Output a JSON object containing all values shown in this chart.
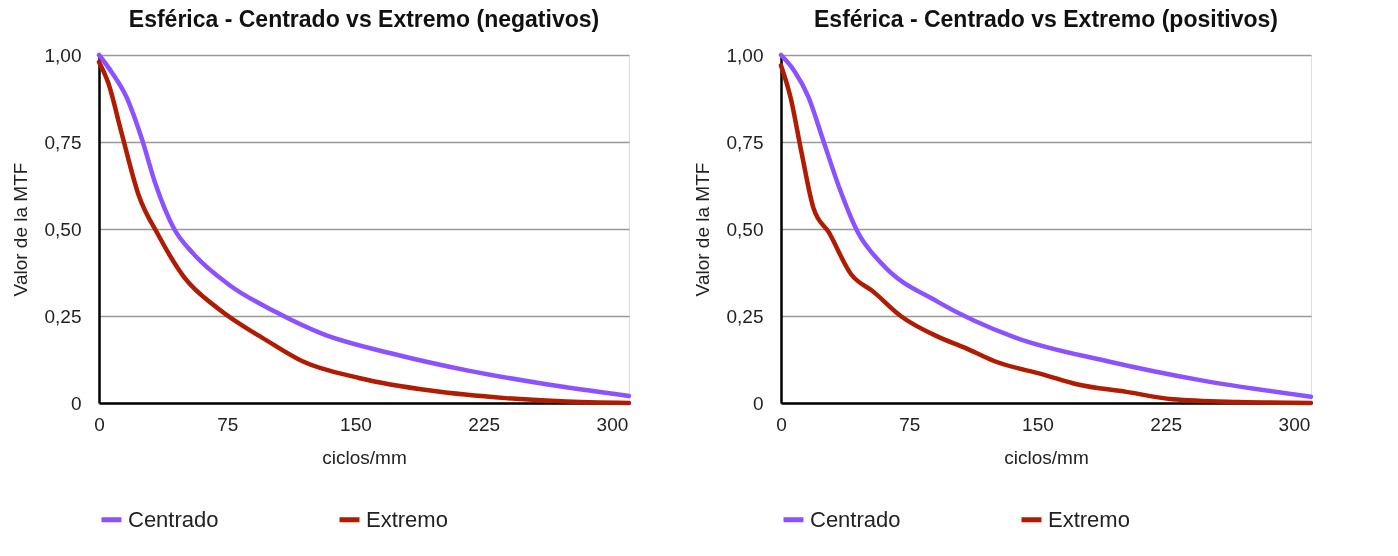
{
  "chart_data": [
    {
      "type": "line",
      "title": "Esférica - Centrado vs Extremo (negativos)",
      "xlabel": "ciclos/mm",
      "ylabel": "Valor de la MTF",
      "series": [
        {
          "name": "Centrado",
          "color": "#8c52ff",
          "x": [
            0,
            7.5,
            16,
            25,
            33,
            44,
            55,
            76,
            104,
            130,
            173,
            216,
            259,
            310
          ],
          "values": [
            1.0,
            0.95,
            0.88,
            0.76,
            0.63,
            0.5,
            0.43,
            0.34,
            0.26,
            0.2,
            0.14,
            0.093,
            0.056,
            0.02
          ]
        },
        {
          "name": "Extremo",
          "color": "#b01c02",
          "x": [
            0,
            5.4,
            13,
            23,
            35,
            50,
            70,
            98,
            119,
            152,
            195,
            238,
            270,
            310
          ],
          "values": [
            0.98,
            0.92,
            0.78,
            0.6,
            0.48,
            0.36,
            0.27,
            0.18,
            0.12,
            0.072,
            0.035,
            0.014,
            0.005,
            0
          ]
        }
      ],
      "xlim": [
        0,
        310
      ],
      "xticks": [
        0,
        75,
        150,
        225,
        300
      ],
      "ylim": [
        0,
        1
      ],
      "yticks": [
        0,
        {
          "value": 0.25,
          "label": "0,25"
        },
        {
          "value": 0.5,
          "label": "0,50"
        },
        {
          "value": 0.75,
          "label": "0,75"
        },
        {
          "value": 1,
          "label": "1,00"
        }
      ],
      "grid": "y",
      "legend": "bottom",
      "marker": "none",
      "line_style": "solid"
    },
    {
      "type": "line",
      "title": "Esférica - Centrado vs Extremo (positivos)",
      "xlabel": "ciclos/mm",
      "ylabel": "Valor de la MTF",
      "series": [
        {
          "name": "Centrado",
          "color": "#8c52ff",
          "x": [
            0,
            7.7,
            16,
            25,
            34,
            45,
            59,
            92,
            136,
            191,
            246,
            310
          ],
          "values": [
            1.0,
            0.955,
            0.88,
            0.75,
            0.62,
            0.49,
            0.4,
            0.29,
            0.19,
            0.12,
            0.065,
            0.018
          ]
        },
        {
          "name": "Extremo",
          "color": "#b01c02",
          "x": [
            0,
            5.5,
            12,
            19,
            28,
            41,
            54,
            70,
            92,
            107,
            125,
            154,
            173,
            202,
            229,
            268,
            310
          ],
          "values": [
            0.97,
            0.88,
            0.72,
            0.56,
            0.49,
            0.37,
            0.32,
            0.25,
            0.19,
            0.16,
            0.12,
            0.081,
            0.054,
            0.032,
            0.011,
            0.003,
            0
          ]
        }
      ],
      "xlim": [
        0,
        310
      ],
      "xticks": [
        0,
        75,
        150,
        225,
        300
      ],
      "ylim": [
        0,
        1
      ],
      "yticks": [
        0,
        {
          "value": 0.25,
          "label": "0,25"
        },
        {
          "value": 0.5,
          "label": "0,50"
        },
        {
          "value": 0.75,
          "label": "0,75"
        },
        {
          "value": 1,
          "label": "1,00"
        }
      ],
      "grid": "y",
      "legend": "bottom",
      "marker": "none",
      "line_style": "solid"
    }
  ]
}
